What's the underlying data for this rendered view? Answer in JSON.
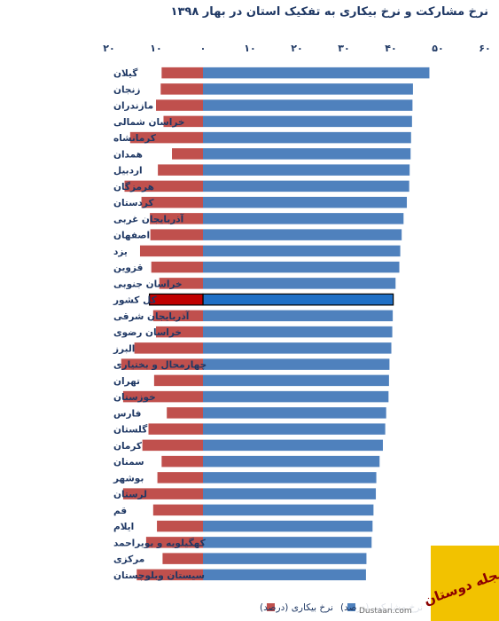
{
  "chart_data": {
    "type": "bar",
    "title": "نرخ مشارکت و نرخ بیکاری به تفکیک استان در بهار ۱۳۹۸",
    "x_ticks": [
      {
        "value": -20,
        "label": "۲۰"
      },
      {
        "value": -10,
        "label": "۱۰"
      },
      {
        "value": 0,
        "label": "۰"
      },
      {
        "value": 10,
        "label": "۱۰"
      },
      {
        "value": 20,
        "label": "۲۰"
      },
      {
        "value": 30,
        "label": "۳۰"
      },
      {
        "value": 40,
        "label": "۴۰"
      },
      {
        "value": 50,
        "label": "۵۰"
      },
      {
        "value": 60,
        "label": "۶۰"
      }
    ],
    "xlim": [
      -20,
      60
    ],
    "grid": false,
    "legend_position": "bottom",
    "highlight_category": "کل کشور",
    "categories": [
      "گیلان",
      "زنجان",
      "مازندران",
      "خراسان شمالی",
      "کرمانشاه",
      "همدان",
      "اردبیل",
      "هرمزگان",
      "کردستان",
      "آذربایجان غربی",
      "اصفهان",
      "یزد",
      "قزوین",
      "خراسان جنوبی",
      "کل کشور",
      "آذربایجان شرقی",
      "خراسان رضوی",
      "البرز",
      "چهارمحال و بختیاری",
      "تهران",
      "خوزستان",
      "فارس",
      "گلستان",
      "کرمان",
      "سمنان",
      "بوشهر",
      "لرستان",
      "قم",
      "ایلام",
      "کهگیلویه و بویراحمد",
      "مرکزی",
      "سیستان وبلوچستان"
    ],
    "series": [
      {
        "name": "نرخ مشارکت (درصد)",
        "color": "#4f81bd",
        "highlight_color": "#1f6fc5",
        "values": [
          48.2,
          44.7,
          44.6,
          44.5,
          44.3,
          44.2,
          44.0,
          43.9,
          43.4,
          42.7,
          42.3,
          42.0,
          41.8,
          41.0,
          40.5,
          40.4,
          40.3,
          40.1,
          39.7,
          39.6,
          39.5,
          39.0,
          38.8,
          38.3,
          37.6,
          36.9,
          36.8,
          36.3,
          36.1,
          35.9,
          34.8,
          34.7
        ]
      },
      {
        "name": "نرخ بیکاری (درصد)",
        "color": "#c0504d",
        "highlight_color": "#c00000",
        "values": [
          8.8,
          9.0,
          10.0,
          8.4,
          15.5,
          6.6,
          9.6,
          16.7,
          13.1,
          11.3,
          11.2,
          13.4,
          11.0,
          9.3,
          11.4,
          10.6,
          10.0,
          14.6,
          17.4,
          10.4,
          17.0,
          7.7,
          11.6,
          12.9,
          8.8,
          9.7,
          17.0,
          10.6,
          9.8,
          12.1,
          8.6,
          14.1
        ]
      }
    ]
  },
  "watermark": {
    "site": "Dustaan.com",
    "logo_text": "مجله دوستان"
  }
}
